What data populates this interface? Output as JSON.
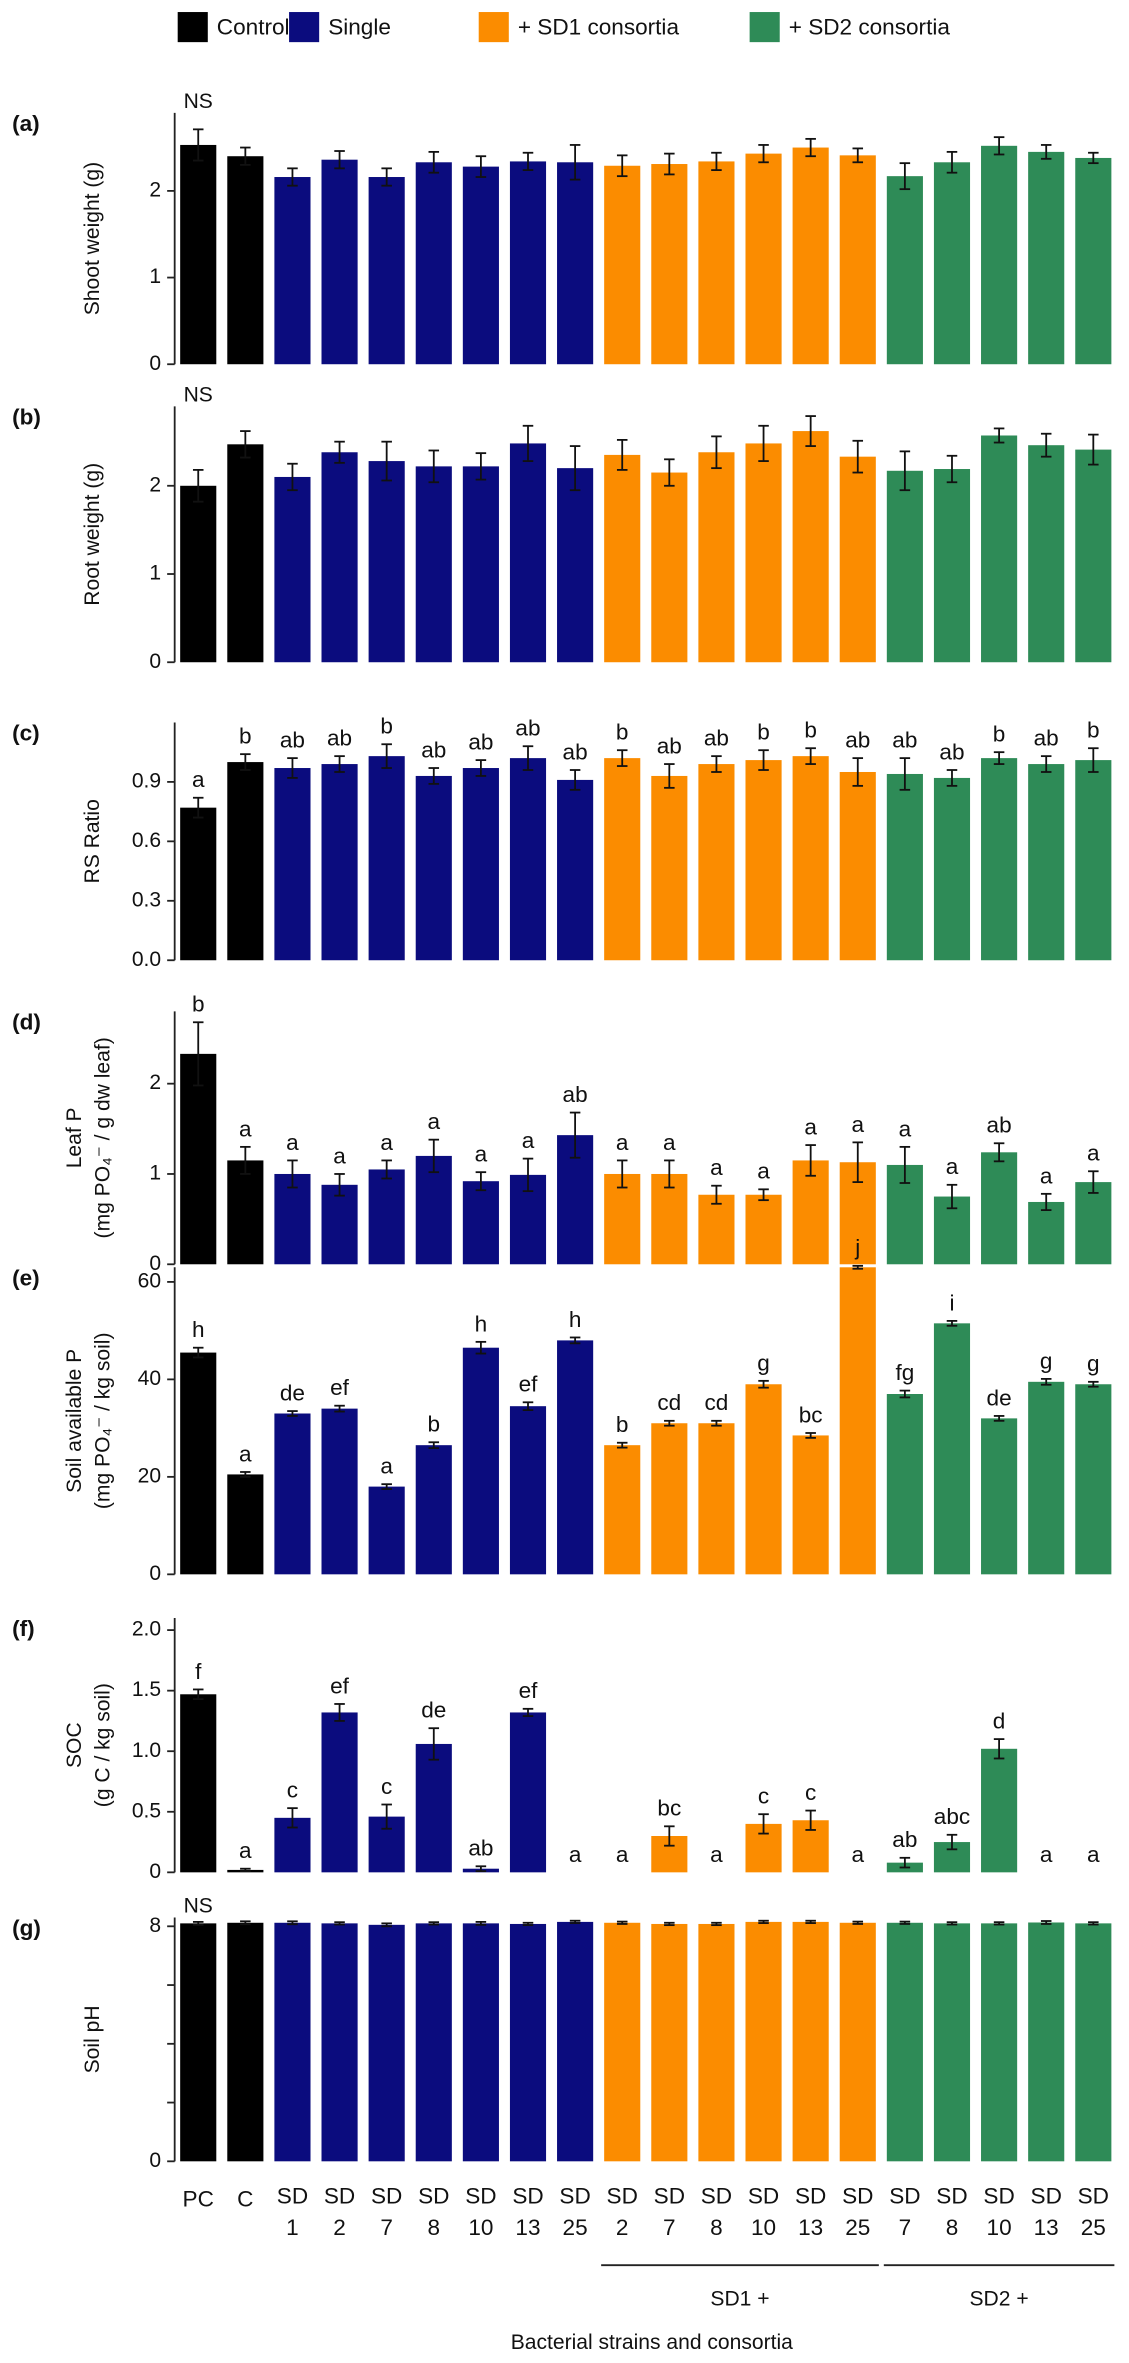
{
  "legend": [
    {
      "name": "Control",
      "color": "#000000"
    },
    {
      "name": "Single",
      "color": "#0b0c7e"
    },
    {
      "name": "+ SD1 consortia",
      "color": "#fb8c00"
    },
    {
      "name": "+ SD2 consortia",
      "color": "#2e8b57"
    }
  ],
  "categories": [
    "PC",
    "C",
    "SD 1",
    "SD 2",
    "SD 7",
    "SD 8",
    "SD 10",
    "SD 13",
    "SD 25",
    "SD 2",
    "SD 7",
    "SD 8",
    "SD 10",
    "SD 13",
    "SD 25",
    "SD 7",
    "SD 8",
    "SD 10",
    "SD 13",
    "SD 25"
  ],
  "bar_colors": [
    "#000000",
    "#000000",
    "#0b0c7e",
    "#0b0c7e",
    "#0b0c7e",
    "#0b0c7e",
    "#0b0c7e",
    "#0b0c7e",
    "#0b0c7e",
    "#fb8c00",
    "#fb8c00",
    "#fb8c00",
    "#fb8c00",
    "#fb8c00",
    "#fb8c00",
    "#2e8b57",
    "#2e8b57",
    "#2e8b57",
    "#2e8b57",
    "#2e8b57"
  ],
  "groups": [
    "SD1 +",
    "SD2 +"
  ],
  "x_label": "Bacterial strains and consortia",
  "chart_data": [
    {
      "type": "bar",
      "panel_label": "(a)",
      "ylabel": [
        "Shoot weight  (g)"
      ],
      "annotation": "NS",
      "ylim": [
        0,
        2.9
      ],
      "yticks": [
        0,
        1,
        2
      ],
      "values": [
        2.53,
        2.4,
        2.16,
        2.36,
        2.16,
        2.33,
        2.28,
        2.34,
        2.33,
        2.29,
        2.31,
        2.34,
        2.43,
        2.5,
        2.41,
        2.17,
        2.33,
        2.52,
        2.45,
        2.38
      ],
      "errors": [
        0.18,
        0.1,
        0.1,
        0.1,
        0.1,
        0.12,
        0.12,
        0.1,
        0.2,
        0.12,
        0.12,
        0.1,
        0.1,
        0.1,
        0.08,
        0.15,
        0.12,
        0.1,
        0.08,
        0.06
      ]
    },
    {
      "type": "bar",
      "panel_label": "(b)",
      "ylabel": [
        "Root weight (g)"
      ],
      "annotation": "NS",
      "ylim": [
        0,
        2.9
      ],
      "yticks": [
        0,
        1,
        2
      ],
      "values": [
        2.0,
        2.47,
        2.1,
        2.38,
        2.28,
        2.22,
        2.22,
        2.48,
        2.2,
        2.35,
        2.15,
        2.38,
        2.48,
        2.62,
        2.33,
        2.17,
        2.19,
        2.57,
        2.46,
        2.41
      ],
      "errors": [
        0.18,
        0.15,
        0.15,
        0.12,
        0.22,
        0.18,
        0.15,
        0.2,
        0.25,
        0.17,
        0.15,
        0.18,
        0.2,
        0.17,
        0.18,
        0.22,
        0.15,
        0.08,
        0.13,
        0.17
      ]
    },
    {
      "type": "bar",
      "panel_label": "(c)",
      "ylabel": [
        "RS Ratio"
      ],
      "ylim": [
        0,
        1.2
      ],
      "yticks": [
        {
          "value": 0,
          "label": "0.0"
        },
        0.3,
        0.6,
        0.9
      ],
      "values": [
        0.77,
        1.0,
        0.97,
        0.99,
        1.03,
        0.93,
        0.97,
        1.02,
        0.91,
        1.02,
        0.93,
        0.99,
        1.01,
        1.03,
        0.95,
        0.94,
        0.92,
        1.02,
        0.99,
        1.01
      ],
      "errors": [
        0.05,
        0.04,
        0.05,
        0.04,
        0.06,
        0.04,
        0.04,
        0.06,
        0.05,
        0.04,
        0.06,
        0.04,
        0.05,
        0.04,
        0.07,
        0.08,
        0.04,
        0.03,
        0.04,
        0.06
      ],
      "letters": [
        "a",
        "b",
        "ab",
        "ab",
        "b",
        "ab",
        "ab",
        "ab",
        "ab",
        "b",
        "ab",
        "ab",
        "b",
        "b",
        "ab",
        "ab",
        "ab",
        "b",
        "ab",
        "b"
      ]
    },
    {
      "type": "bar",
      "panel_label": "(d)",
      "ylabel": [
        "Leaf P",
        "(mg PO₄⁻ / g dw leaf)"
      ],
      "ylim": [
        0,
        2.8
      ],
      "yticks": [
        0,
        1,
        2
      ],
      "values": [
        2.33,
        1.15,
        1.0,
        0.88,
        1.05,
        1.2,
        0.92,
        0.99,
        1.43,
        1.0,
        1.0,
        0.77,
        0.77,
        1.15,
        1.13,
        1.1,
        0.75,
        1.24,
        0.69,
        0.91
      ],
      "errors": [
        0.35,
        0.15,
        0.15,
        0.12,
        0.1,
        0.18,
        0.1,
        0.18,
        0.25,
        0.15,
        0.15,
        0.1,
        0.06,
        0.17,
        0.22,
        0.2,
        0.13,
        0.1,
        0.09,
        0.12
      ],
      "letters": [
        "b",
        "a",
        "a",
        "a",
        "a",
        "a",
        "a",
        "a",
        "ab",
        "a",
        "a",
        "a",
        "a",
        "a",
        "a",
        "a",
        "a",
        "ab",
        "a",
        "a"
      ]
    },
    {
      "type": "bar",
      "panel_label": "(e)",
      "ylabel": [
        "Soil available P",
        "(mg PO₄⁻ / kg soil)"
      ],
      "ylim": [
        0,
        63
      ],
      "yticks": [
        0,
        20,
        40,
        60
      ],
      "values": [
        45.5,
        20.5,
        33,
        34,
        18,
        26.5,
        46.5,
        34.5,
        48,
        26.5,
        31,
        31,
        39,
        28.5,
        63,
        37,
        51.5,
        32,
        39.5,
        39
      ],
      "errors": [
        1,
        0.5,
        0.5,
        0.6,
        0.5,
        0.6,
        1.2,
        0.8,
        0.6,
        0.5,
        0.5,
        0.5,
        0.7,
        0.5,
        0.3,
        0.7,
        0.5,
        0.5,
        0.6,
        0.5
      ],
      "letters": [
        "h",
        "a",
        "de",
        "ef",
        "a",
        "b",
        "h",
        "ef",
        "h",
        "b",
        "cd",
        "cd",
        "g",
        "bc",
        "j",
        "fg",
        "i",
        "de",
        "g",
        "g"
      ]
    },
    {
      "type": "bar",
      "panel_label": "(f)",
      "ylabel": [
        "SOC",
        "(g C / kg soil)"
      ],
      "ylim": [
        0,
        2.1
      ],
      "yticks": [
        0,
        0.5,
        {
          "value": 1,
          "label": "1.0"
        },
        1.5,
        {
          "value": 2,
          "label": "2.0"
        }
      ],
      "values": [
        1.47,
        0.02,
        0.45,
        1.32,
        0.46,
        1.06,
        0.03,
        1.32,
        0,
        0,
        0.3,
        0,
        0.4,
        0.43,
        0,
        0.08,
        0.25,
        1.02,
        0,
        0
      ],
      "errors": [
        0.04,
        0.01,
        0.08,
        0.07,
        0.1,
        0.13,
        0.02,
        0.03,
        null,
        null,
        0.08,
        null,
        0.08,
        0.08,
        null,
        0.04,
        0.06,
        0.08,
        null,
        null
      ],
      "letters": [
        "f",
        "a",
        "c",
        "ef",
        "c",
        "de",
        "ab",
        "ef",
        "a",
        "a",
        "bc",
        "a",
        "c",
        "c",
        "a",
        "ab",
        "abc",
        "d",
        "a",
        "a"
      ]
    },
    {
      "type": "bar",
      "panel_label": "(g)",
      "ylabel": [
        "Soil pH"
      ],
      "annotation": "NS",
      "ylim": [
        0,
        8.3
      ],
      "yticks": [
        0,
        8
      ],
      "yminor": [
        2,
        4,
        6
      ],
      "values": [
        8.1,
        8.12,
        8.12,
        8.1,
        8.05,
        8.1,
        8.1,
        8.08,
        8.15,
        8.12,
        8.08,
        8.08,
        8.15,
        8.15,
        8.12,
        8.12,
        8.1,
        8.1,
        8.13,
        8.1
      ],
      "errors": [
        0.05,
        0.05,
        0.05,
        0.04,
        0.05,
        0.04,
        0.05,
        0.04,
        0.04,
        0.04,
        0.04,
        0.04,
        0.04,
        0.04,
        0.04,
        0.04,
        0.04,
        0.04,
        0.05,
        0.04
      ]
    }
  ]
}
